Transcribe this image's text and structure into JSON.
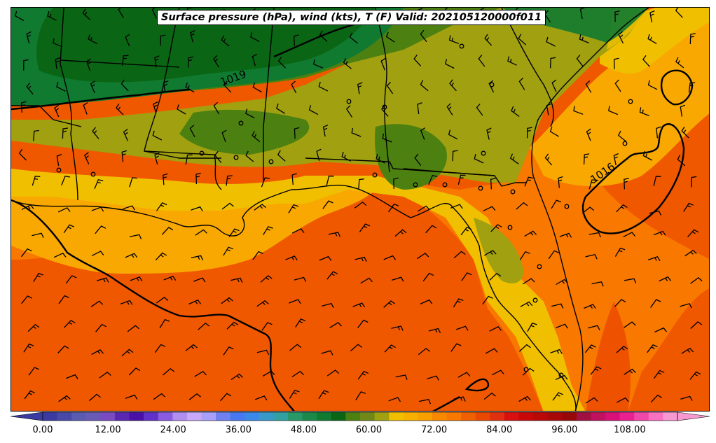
{
  "title": "Surface pressure (hPa), wind (kts), T (F) Valid: 202105120000f011",
  "colors": {
    "dark_green": "#0a6614",
    "mid_green": "#107a30",
    "green": "#4c8010",
    "olive": "#a0a010",
    "yellow": "#f0c000",
    "light_orange": "#f8a800",
    "orange": "#f87800",
    "deep_orange": "#f05800",
    "red_orange": "#e83800"
  },
  "contour_labels": [
    "1019",
    "1016"
  ],
  "colorbar": {
    "ticks": [
      "0.00",
      "12.00",
      "24.00",
      "36.00",
      "48.00",
      "60.00",
      "72.00",
      "84.00",
      "96.00",
      "108.00"
    ],
    "colors": [
      "#3a3aa0",
      "#4848a8",
      "#5a5ab0",
      "#6a5ab8",
      "#7a4ac0",
      "#5a28b0",
      "#4a10a8",
      "#6030c8",
      "#8a5ae0",
      "#b08ef0",
      "#c8a8f8",
      "#a8a0f8",
      "#7080f0",
      "#4878f0",
      "#3a88e8",
      "#3898c8",
      "#30a0a0",
      "#289868",
      "#1a8848",
      "#107a30",
      "#0a6614",
      "#4c8010",
      "#708818",
      "#a0a010",
      "#f0c000",
      "#f8b000",
      "#f8a000",
      "#f88800",
      "#f87800",
      "#f06000",
      "#e84800",
      "#e03010",
      "#d81010",
      "#c80808",
      "#b80808",
      "#a80808",
      "#980808",
      "#a01040",
      "#c01060",
      "#d81078",
      "#e82090",
      "#f048a8",
      "#f870c0",
      "#f898d0"
    ]
  }
}
